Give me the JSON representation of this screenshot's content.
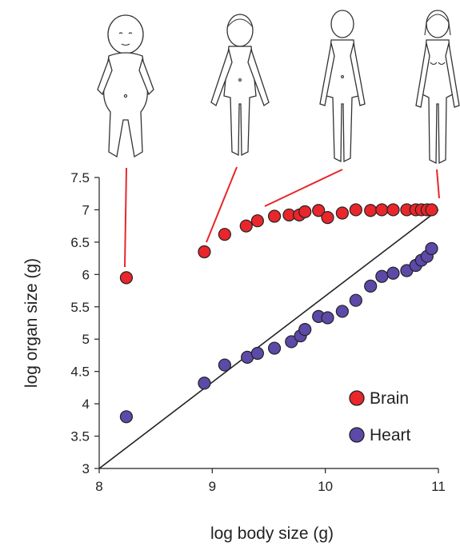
{
  "colors": {
    "brain": "#e8262b",
    "heart": "#5c49a8",
    "callout": "#e8262b",
    "axis": "#222222"
  },
  "illustrations": [
    {
      "icon": "infant-figure-icon",
      "stage": "infant"
    },
    {
      "icon": "child-figure-icon",
      "stage": "child"
    },
    {
      "icon": "adolescent-figure-icon",
      "stage": "adolescent"
    },
    {
      "icon": "adult-figure-icon",
      "stage": "adult"
    }
  ],
  "chart_data": {
    "type": "scatter",
    "xlabel": "log body size (g)",
    "ylabel": "log organ size (g)",
    "xlim": [
      8,
      11
    ],
    "ylim": [
      3,
      7.5
    ],
    "xticks": [
      "8",
      "9",
      "10",
      "11"
    ],
    "yticks": [
      "3",
      "3.5",
      "4",
      "4.5",
      "5",
      "5.5",
      "6",
      "6.5",
      "7",
      "7.5"
    ],
    "grid": false,
    "legend_position": "bottom-right",
    "reference_line": {
      "from": [
        8,
        3
      ],
      "to": [
        11,
        7
      ]
    },
    "series": [
      {
        "name": "Brain",
        "color": "#e8262b",
        "x": [
          8.24,
          8.93,
          9.11,
          9.3,
          9.4,
          9.55,
          9.68,
          9.77,
          9.82,
          9.94,
          10.02,
          10.15,
          10.27,
          10.4,
          10.5,
          10.6,
          10.72,
          10.8,
          10.85,
          10.9,
          10.94
        ],
        "y": [
          5.95,
          6.35,
          6.62,
          6.75,
          6.83,
          6.9,
          6.92,
          6.92,
          6.97,
          6.99,
          6.88,
          6.95,
          7.0,
          6.99,
          7.0,
          7.0,
          7.0,
          7.0,
          7.0,
          7.0,
          7.0
        ]
      },
      {
        "name": "Heart",
        "color": "#5c49a8",
        "x": [
          8.24,
          8.93,
          9.11,
          9.31,
          9.4,
          9.55,
          9.7,
          9.78,
          9.82,
          9.94,
          10.02,
          10.15,
          10.27,
          10.4,
          10.5,
          10.6,
          10.72,
          10.8,
          10.85,
          10.9,
          10.94
        ],
        "y": [
          3.8,
          4.32,
          4.6,
          4.72,
          4.78,
          4.86,
          4.96,
          5.05,
          5.15,
          5.35,
          5.33,
          5.43,
          5.6,
          5.82,
          5.97,
          6.02,
          6.06,
          6.14,
          6.22,
          6.28,
          6.4
        ]
      }
    ]
  }
}
